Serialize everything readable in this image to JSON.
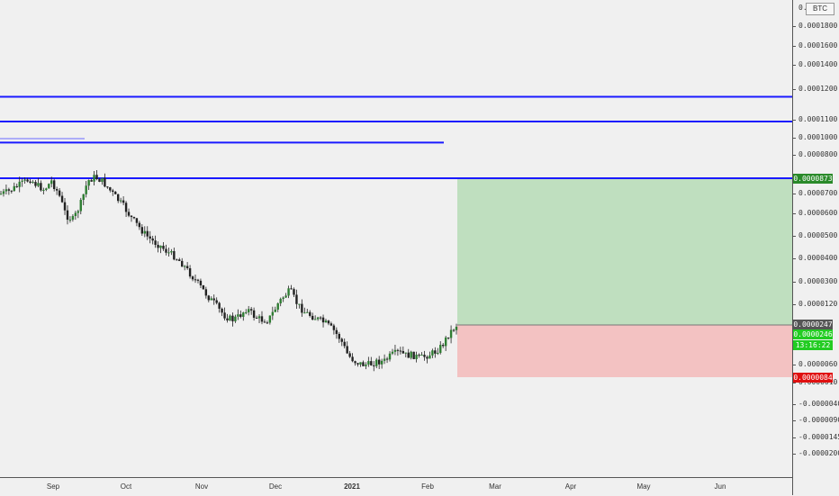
{
  "chart_data": {
    "type": "candlestick",
    "symbol_currency": "BTC",
    "y_ticks": [
      "0.0001800",
      "0.0001600",
      "0.0001400",
      "0.0001200",
      "0.0001100",
      "0.0001000",
      "0.0000800",
      "0.0000700",
      "0.0000600",
      "0.0000500",
      "0.0000400",
      "0.0000300",
      "0.0000120",
      "0.0000060",
      "0.0000010",
      "-0.0000040",
      "-0.0000090",
      "-0.0000145",
      "-0.0000200"
    ],
    "top_tick_partial": "0.0",
    "x_labels": [
      {
        "text": "Sep",
        "bold": false
      },
      {
        "text": "Oct",
        "bold": false
      },
      {
        "text": "Nov",
        "bold": false
      },
      {
        "text": "Dec",
        "bold": false
      },
      {
        "text": "2021",
        "bold": true
      },
      {
        "text": "Feb",
        "bold": false
      },
      {
        "text": "Mar",
        "bold": false
      },
      {
        "text": "Apr",
        "bold": false
      },
      {
        "text": "May",
        "bold": false
      },
      {
        "text": "Jun",
        "bold": false
      }
    ],
    "horizontal_lines": [
      {
        "price": 0.000135,
        "color": "#1a1aff",
        "extends_full": true
      },
      {
        "price": 0.000119,
        "color": "#1a1aff",
        "extends_full": true
      },
      {
        "price": 0.000107,
        "color": "#1a1aff",
        "extends_full": false
      },
      {
        "price": 8.73e-05,
        "color": "#1a1aff",
        "extends_full": true
      }
    ],
    "position": {
      "type": "long",
      "target": "0.0000873",
      "entry": "0.0000247",
      "stop": "0.0000084",
      "profit_color": "#bfdfbf",
      "loss_color": "#f3c2c2"
    },
    "price_tags": {
      "target": {
        "text": "0.0000873",
        "color": "#2a8a2a"
      },
      "entry": {
        "text": "0.0000247",
        "color": "#555555"
      },
      "last": {
        "text": "0.0000246",
        "color": "#22cc22"
      },
      "countdown": {
        "text": "13:16:22",
        "color": "#22cc22"
      },
      "stop": {
        "text": "0.0000084",
        "color": "#e01010"
      }
    },
    "close_series": [
      8e-05,
      8.1e-05,
      8.3e-05,
      8.5e-05,
      8.7e-05,
      8.4e-05,
      8.2e-05,
      8.6e-05,
      8e-05,
      7e-05,
      6.8e-05,
      7.5e-05,
      8.6e-05,
      8.8e-05,
      8.6e-05,
      8.2e-05,
      7.8e-05,
      7.4e-05,
      6.9e-05,
      6.5e-05,
      6.1e-05,
      5.8e-05,
      5.6e-05,
      5.3e-05,
      5.1e-05,
      4.8e-05,
      4.4e-05,
      4e-05,
      3.6e-05,
      3.2e-05,
      2.9e-05,
      2.7e-05,
      2.6e-05,
      2.7e-05,
      2.9e-05,
      2.7e-05,
      2.6e-05,
      2.6e-05,
      2.9e-05,
      3.3e-05,
      3.6e-05,
      3e-05,
      2.8e-05,
      2.7e-05,
      2.6e-05,
      2.5e-05,
      2.3e-05,
      2e-05,
      1.5e-05,
      1.3e-05,
      1.2e-05,
      1.2e-05,
      1.3e-05,
      1.3e-05,
      1.5e-05,
      1.6e-05,
      1.5e-05,
      1.5e-05,
      1.4e-05,
      1.5e-05,
      1.6e-05,
      1.8e-05,
      2.2e-05,
      2.46e-05
    ]
  }
}
